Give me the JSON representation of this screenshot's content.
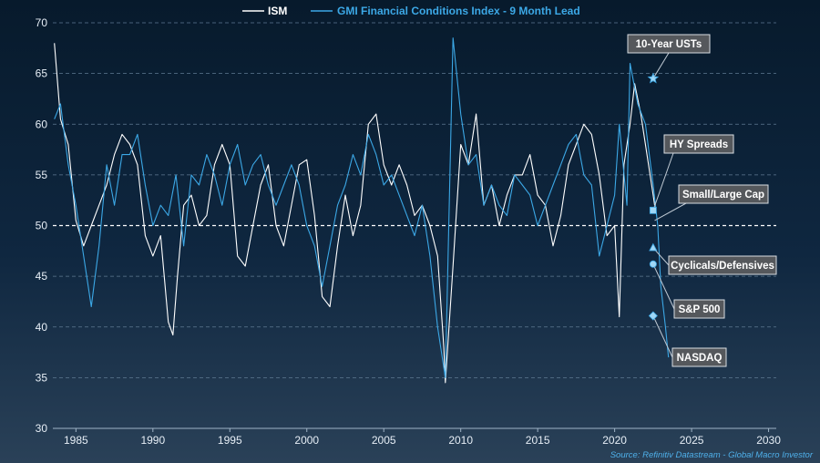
{
  "chart_data": {
    "type": "line",
    "title": "",
    "xlabel": "",
    "ylabel": "",
    "xlim": [
      1983.5,
      2030.5
    ],
    "ylim": [
      30,
      70
    ],
    "x_ticks": [
      1985,
      1990,
      1995,
      2000,
      2005,
      2010,
      2015,
      2020,
      2025,
      2030
    ],
    "y_ticks": [
      30,
      35,
      40,
      45,
      50,
      55,
      60,
      65,
      70
    ],
    "grid": "horizontal-dashed",
    "legend_position": "top-center",
    "reference_line": {
      "y": 50,
      "style": "dashed",
      "color": "#ffffff"
    },
    "series": [
      {
        "name": "ISM",
        "color": "#ffffff",
        "points": [
          [
            1983.6,
            68
          ],
          [
            1984.0,
            60.5
          ],
          [
            1984.5,
            58
          ],
          [
            1985.0,
            50.5
          ],
          [
            1985.5,
            48
          ],
          [
            1986.0,
            50
          ],
          [
            1986.5,
            52
          ],
          [
            1987.0,
            54
          ],
          [
            1987.5,
            57
          ],
          [
            1988.0,
            59
          ],
          [
            1988.5,
            58
          ],
          [
            1989.0,
            56
          ],
          [
            1989.5,
            49
          ],
          [
            1990.0,
            47
          ],
          [
            1990.5,
            49
          ],
          [
            1991.0,
            40.5
          ],
          [
            1991.3,
            39.2
          ],
          [
            1991.6,
            45
          ],
          [
            1992.0,
            52
          ],
          [
            1992.5,
            53
          ],
          [
            1993.0,
            50
          ],
          [
            1993.5,
            51
          ],
          [
            1994.0,
            56
          ],
          [
            1994.5,
            58
          ],
          [
            1995.0,
            56
          ],
          [
            1995.5,
            47
          ],
          [
            1996.0,
            46
          ],
          [
            1996.5,
            50
          ],
          [
            1997.0,
            54
          ],
          [
            1997.5,
            56
          ],
          [
            1998.0,
            50
          ],
          [
            1998.5,
            48
          ],
          [
            1999.0,
            52
          ],
          [
            1999.5,
            56
          ],
          [
            2000.0,
            56.5
          ],
          [
            2000.5,
            51
          ],
          [
            2001.0,
            43
          ],
          [
            2001.5,
            42
          ],
          [
            2002.0,
            48
          ],
          [
            2002.5,
            53
          ],
          [
            2003.0,
            49
          ],
          [
            2003.5,
            52
          ],
          [
            2004.0,
            60
          ],
          [
            2004.5,
            61
          ],
          [
            2005.0,
            56
          ],
          [
            2005.5,
            54
          ],
          [
            2006.0,
            56
          ],
          [
            2006.5,
            54
          ],
          [
            2007.0,
            51
          ],
          [
            2007.5,
            52
          ],
          [
            2008.0,
            50
          ],
          [
            2008.5,
            47
          ],
          [
            2008.9,
            38
          ],
          [
            2009.0,
            34.5
          ],
          [
            2009.5,
            46
          ],
          [
            2010.0,
            58
          ],
          [
            2010.5,
            56
          ],
          [
            2011.0,
            61
          ],
          [
            2011.5,
            52
          ],
          [
            2012.0,
            54
          ],
          [
            2012.5,
            50
          ],
          [
            2013.0,
            53
          ],
          [
            2013.5,
            55
          ],
          [
            2014.0,
            55
          ],
          [
            2014.5,
            57
          ],
          [
            2015.0,
            53
          ],
          [
            2015.5,
            52
          ],
          [
            2016.0,
            48
          ],
          [
            2016.5,
            51
          ],
          [
            2017.0,
            56
          ],
          [
            2017.5,
            58
          ],
          [
            2018.0,
            60
          ],
          [
            2018.5,
            59
          ],
          [
            2019.0,
            55
          ],
          [
            2019.5,
            49
          ],
          [
            2020.0,
            50
          ],
          [
            2020.3,
            41
          ],
          [
            2020.6,
            56
          ],
          [
            2021.0,
            60
          ],
          [
            2021.3,
            64
          ],
          [
            2021.7,
            61
          ],
          [
            2022.0,
            58
          ],
          [
            2022.5,
            53
          ],
          [
            2022.6,
            52
          ]
        ]
      },
      {
        "name": "GMI Financial Conditions Index - 9 Month Lead",
        "color": "#3ca8e6",
        "points": [
          [
            1983.6,
            60.5
          ],
          [
            1984.0,
            62
          ],
          [
            1984.5,
            56
          ],
          [
            1985.0,
            52
          ],
          [
            1985.5,
            47
          ],
          [
            1986.0,
            42
          ],
          [
            1986.5,
            48
          ],
          [
            1987.0,
            56
          ],
          [
            1987.5,
            52
          ],
          [
            1988.0,
            57
          ],
          [
            1988.5,
            57
          ],
          [
            1989.0,
            59
          ],
          [
            1989.5,
            54
          ],
          [
            1990.0,
            50
          ],
          [
            1990.5,
            52
          ],
          [
            1991.0,
            51
          ],
          [
            1991.5,
            55
          ],
          [
            1992.0,
            48
          ],
          [
            1992.5,
            55
          ],
          [
            1993.0,
            54
          ],
          [
            1993.5,
            57
          ],
          [
            1994.0,
            55
          ],
          [
            1994.5,
            52
          ],
          [
            1995.0,
            56
          ],
          [
            1995.5,
            58
          ],
          [
            1996.0,
            54
          ],
          [
            1996.5,
            56
          ],
          [
            1997.0,
            57
          ],
          [
            1997.5,
            54
          ],
          [
            1998.0,
            52
          ],
          [
            1998.5,
            54
          ],
          [
            1999.0,
            56
          ],
          [
            1999.5,
            54
          ],
          [
            2000.0,
            50
          ],
          [
            2000.5,
            48
          ],
          [
            2001.0,
            44
          ],
          [
            2001.5,
            48
          ],
          [
            2002.0,
            52
          ],
          [
            2002.5,
            54
          ],
          [
            2003.0,
            57
          ],
          [
            2003.5,
            55
          ],
          [
            2004.0,
            59
          ],
          [
            2004.5,
            57
          ],
          [
            2005.0,
            54
          ],
          [
            2005.5,
            55
          ],
          [
            2006.0,
            53
          ],
          [
            2006.5,
            51
          ],
          [
            2007.0,
            49
          ],
          [
            2007.5,
            52
          ],
          [
            2008.0,
            47
          ],
          [
            2008.5,
            40
          ],
          [
            2009.0,
            35
          ],
          [
            2009.5,
            68.5
          ],
          [
            2010.0,
            61
          ],
          [
            2010.5,
            56
          ],
          [
            2011.0,
            57
          ],
          [
            2011.5,
            52
          ],
          [
            2012.0,
            54
          ],
          [
            2012.5,
            52
          ],
          [
            2013.0,
            51
          ],
          [
            2013.5,
            55
          ],
          [
            2014.0,
            54
          ],
          [
            2014.5,
            53
          ],
          [
            2015.0,
            50
          ],
          [
            2015.5,
            52
          ],
          [
            2016.0,
            54
          ],
          [
            2016.5,
            56
          ],
          [
            2017.0,
            58
          ],
          [
            2017.5,
            59
          ],
          [
            2018.0,
            55
          ],
          [
            2018.5,
            54
          ],
          [
            2019.0,
            47
          ],
          [
            2019.5,
            50
          ],
          [
            2020.0,
            53
          ],
          [
            2020.3,
            60
          ],
          [
            2020.8,
            52
          ],
          [
            2021.0,
            66
          ],
          [
            2021.5,
            62
          ],
          [
            2022.0,
            60
          ],
          [
            2022.5,
            54
          ],
          [
            2022.8,
            50
          ],
          [
            2023.0,
            44
          ],
          [
            2023.3,
            40
          ],
          [
            2023.5,
            37
          ]
        ]
      }
    ],
    "markers": [
      {
        "label": "10-Year USTs",
        "shape": "star",
        "x": 2022.5,
        "y": 64.5
      },
      {
        "label": "HY Spreads",
        "shape": "square",
        "x": 2022.5,
        "y": 51.5
      },
      {
        "label": "Small/Large Cap",
        "shape": "none",
        "x": 2022.6,
        "y": 50.5
      },
      {
        "label": "Cyclicals/Defensives",
        "shape": "triangle",
        "x": 2022.5,
        "y": 47.8
      },
      {
        "label": "S&P 500",
        "shape": "circle",
        "x": 2022.5,
        "y": 46.2
      },
      {
        "label": "NASDAQ",
        "shape": "diamond",
        "x": 2022.5,
        "y": 41.1
      }
    ],
    "source": "Source: Refinitiv Datastream - Global Macro Investor"
  }
}
